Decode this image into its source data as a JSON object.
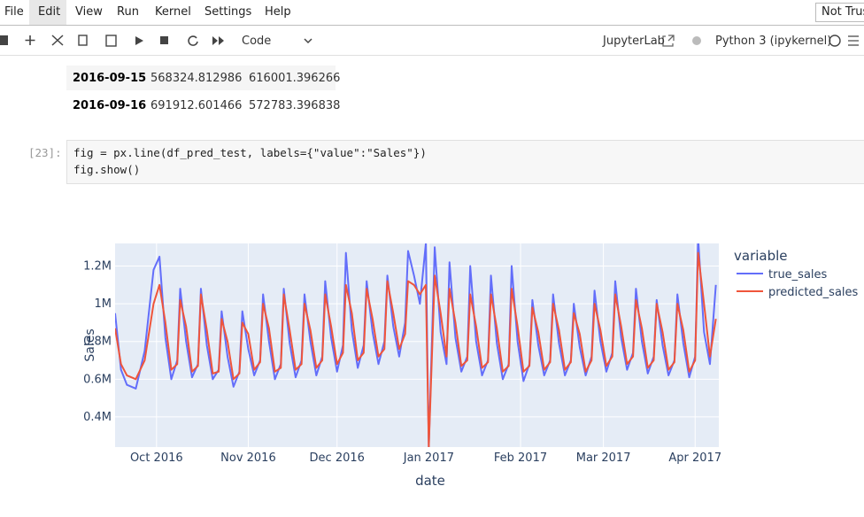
{
  "menu": [
    "File",
    "Edit",
    "View",
    "Run",
    "Kernel",
    "Settings",
    "Help"
  ],
  "trust_button": "Not Trusted",
  "toolbar": {
    "cell_type": "Code",
    "jupyterlab": "JupyterLab",
    "kernel": "Python 3 (ipykernel)"
  },
  "table": {
    "rows": [
      [
        "2016-09-15",
        "568324.812986",
        "616001.396266"
      ],
      [
        "2016-09-16",
        "691912.601466",
        "572783.396838"
      ]
    ]
  },
  "cell": {
    "prompt": "[23]:",
    "code": [
      "fig = px.line(df_pred_test, labels={\"value\":\"Sales\"})",
      "fig.show()"
    ]
  },
  "chart_data": {
    "type": "line",
    "x_label": "date",
    "y_label": "Sales",
    "legend_title": "variable",
    "legend": "right",
    "grid": true,
    "xlim": [
      "2016-09-17",
      "2017-04-09"
    ],
    "xticks": [
      {
        "value": "2016-10-01",
        "label": "Oct 2016"
      },
      {
        "value": "2016-11-01",
        "label": "Nov 2016"
      },
      {
        "value": "2016-12-01",
        "label": "Dec 2016"
      },
      {
        "value": "2017-01-01",
        "label": "Jan 2017"
      },
      {
        "value": "2017-02-01",
        "label": "Feb 2017"
      },
      {
        "value": "2017-03-01",
        "label": "Mar 2017"
      },
      {
        "value": "2017-04-01",
        "label": "Apr 2017"
      }
    ],
    "ylim": [
      240000,
      1320000
    ],
    "yticks": [
      {
        "value": 400000,
        "label": "0.4M"
      },
      {
        "value": 600000,
        "label": "0.6M"
      },
      {
        "value": 800000,
        "label": "0.8M"
      },
      {
        "value": 1000000,
        "label": "1M"
      },
      {
        "value": 1200000,
        "label": "1.2M"
      }
    ],
    "x": [
      "2016-09-17",
      "2016-09-19",
      "2016-09-21",
      "2016-09-24",
      "2016-09-27",
      "2016-09-30",
      "2016-10-02",
      "2016-10-04",
      "2016-10-06",
      "2016-10-08",
      "2016-10-09",
      "2016-10-11",
      "2016-10-13",
      "2016-10-15",
      "2016-10-16",
      "2016-10-18",
      "2016-10-20",
      "2016-10-22",
      "2016-10-23",
      "2016-10-25",
      "2016-10-27",
      "2016-10-29",
      "2016-10-30",
      "2016-11-01",
      "2016-11-03",
      "2016-11-05",
      "2016-11-06",
      "2016-11-08",
      "2016-11-10",
      "2016-11-12",
      "2016-11-13",
      "2016-11-15",
      "2016-11-17",
      "2016-11-19",
      "2016-11-20",
      "2016-11-22",
      "2016-11-24",
      "2016-11-26",
      "2016-11-27",
      "2016-11-29",
      "2016-12-01",
      "2016-12-03",
      "2016-12-04",
      "2016-12-06",
      "2016-12-08",
      "2016-12-10",
      "2016-12-11",
      "2016-12-13",
      "2016-12-15",
      "2016-12-17",
      "2016-12-18",
      "2016-12-20",
      "2016-12-22",
      "2016-12-24",
      "2016-12-25",
      "2016-12-27",
      "2016-12-29",
      "2016-12-31",
      "2017-01-01",
      "2017-01-03",
      "2017-01-05",
      "2017-01-07",
      "2017-01-08",
      "2017-01-10",
      "2017-01-12",
      "2017-01-14",
      "2017-01-15",
      "2017-01-17",
      "2017-01-19",
      "2017-01-21",
      "2017-01-22",
      "2017-01-24",
      "2017-01-26",
      "2017-01-28",
      "2017-01-29",
      "2017-01-31",
      "2017-02-02",
      "2017-02-04",
      "2017-02-05",
      "2017-02-07",
      "2017-02-09",
      "2017-02-11",
      "2017-02-12",
      "2017-02-14",
      "2017-02-16",
      "2017-02-18",
      "2017-02-19",
      "2017-02-21",
      "2017-02-23",
      "2017-02-25",
      "2017-02-26",
      "2017-02-28",
      "2017-03-02",
      "2017-03-04",
      "2017-03-05",
      "2017-03-07",
      "2017-03-09",
      "2017-03-11",
      "2017-03-12",
      "2017-03-14",
      "2017-03-16",
      "2017-03-18",
      "2017-03-19",
      "2017-03-21",
      "2017-03-23",
      "2017-03-25",
      "2017-03-26",
      "2017-03-28",
      "2017-03-30",
      "2017-04-01",
      "2017-04-02",
      "2017-04-04",
      "2017-04-06",
      "2017-04-08"
    ],
    "series": [
      {
        "name": "true_sales",
        "color": "#636efa",
        "values": [
          950000,
          650000,
          570000,
          550000,
          750000,
          1180000,
          1250000,
          820000,
          600000,
          700000,
          1080000,
          800000,
          610000,
          680000,
          1080000,
          780000,
          600000,
          650000,
          960000,
          720000,
          560000,
          640000,
          960000,
          760000,
          620000,
          700000,
          1050000,
          800000,
          600000,
          680000,
          1080000,
          790000,
          610000,
          700000,
          1050000,
          800000,
          620000,
          720000,
          1120000,
          820000,
          640000,
          780000,
          1270000,
          860000,
          660000,
          780000,
          1120000,
          850000,
          680000,
          800000,
          1150000,
          880000,
          720000,
          900000,
          1280000,
          1150000,
          1000000,
          1320000,
          240000,
          1300000,
          850000,
          680000,
          1220000,
          820000,
          640000,
          720000,
          1200000,
          800000,
          620000,
          700000,
          1150000,
          790000,
          600000,
          680000,
          1200000,
          800000,
          590000,
          680000,
          1020000,
          780000,
          620000,
          700000,
          1050000,
          790000,
          620000,
          700000,
          1000000,
          770000,
          620000,
          720000,
          1070000,
          800000,
          640000,
          740000,
          1120000,
          820000,
          650000,
          740000,
          1080000,
          800000,
          630000,
          720000,
          1020000,
          780000,
          620000,
          700000,
          1050000,
          790000,
          610000,
          720000,
          1350000,
          850000,
          680000,
          1100000
        ]
      },
      {
        "name": "predicted_sales",
        "color": "#ef553b",
        "values": [
          870000,
          680000,
          620000,
          600000,
          700000,
          1000000,
          1100000,
          900000,
          650000,
          680000,
          1020000,
          880000,
          640000,
          670000,
          1050000,
          860000,
          630000,
          640000,
          920000,
          800000,
          600000,
          630000,
          900000,
          840000,
          650000,
          690000,
          1000000,
          870000,
          640000,
          660000,
          1050000,
          860000,
          650000,
          680000,
          1000000,
          860000,
          660000,
          700000,
          1050000,
          880000,
          680000,
          740000,
          1100000,
          950000,
          700000,
          740000,
          1080000,
          920000,
          720000,
          760000,
          1120000,
          950000,
          760000,
          840000,
          1120000,
          1100000,
          1050000,
          1100000,
          240000,
          1150000,
          950000,
          720000,
          1080000,
          900000,
          670000,
          700000,
          1050000,
          880000,
          660000,
          690000,
          1050000,
          870000,
          640000,
          670000,
          1080000,
          880000,
          640000,
          670000,
          980000,
          850000,
          650000,
          690000,
          1000000,
          860000,
          650000,
          690000,
          950000,
          840000,
          640000,
          700000,
          1000000,
          860000,
          670000,
          720000,
          1050000,
          880000,
          680000,
          720000,
          1020000,
          870000,
          660000,
          700000,
          1000000,
          850000,
          650000,
          690000,
          1000000,
          860000,
          640000,
          700000,
          1270000,
          1000000,
          720000,
          920000
        ]
      }
    ]
  }
}
